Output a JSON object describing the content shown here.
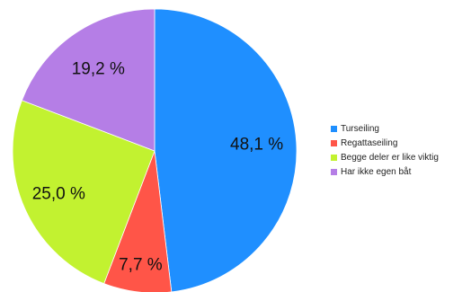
{
  "chart_data": {
    "type": "pie",
    "slices": [
      {
        "label": "Turseiling",
        "value": 48.1,
        "display": "48,1 %",
        "color": "#1f8fff"
      },
      {
        "label": "Regattaseiling",
        "value": 7.7,
        "display": "7,7 %",
        "color": "#ff5548"
      },
      {
        "label": "Begge deler er like viktig",
        "value": 25.0,
        "display": "25,0 %",
        "color": "#c2f230"
      },
      {
        "label": "Har ikke egen båt",
        "value": 19.2,
        "display": "19,2 %",
        "color": "#b57ee6"
      }
    ],
    "start": "12 o'clock",
    "direction": "clockwise",
    "legend_position": "right"
  }
}
